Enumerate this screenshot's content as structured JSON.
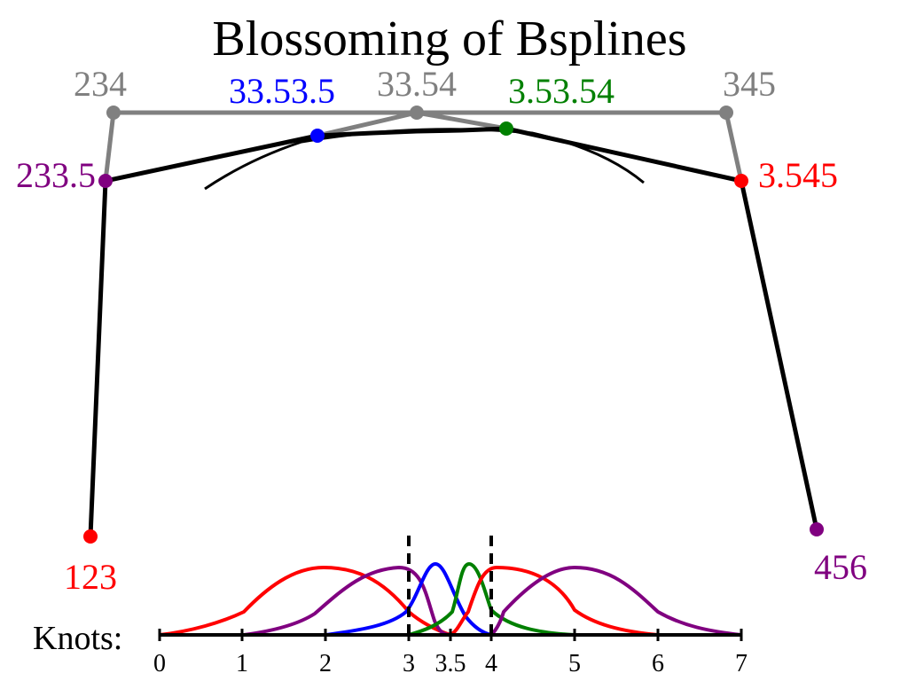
{
  "title": "Blossoming of Bsplines",
  "colors": {
    "gray": "#808080",
    "black": "#000000",
    "red": "#ff0000",
    "purple": "#800080",
    "blue": "#0000ff",
    "green": "#008000"
  },
  "points": {
    "p123": {
      "label": "123",
      "color": "#ff0000"
    },
    "p234": {
      "label": "234",
      "color": "#808080"
    },
    "p345": {
      "label": "345",
      "color": "#808080"
    },
    "p456": {
      "label": "456",
      "color": "#800080"
    },
    "p2335": {
      "label": "233.5",
      "color": "#800080"
    },
    "p3354": {
      "label": "33.54",
      "color": "#808080"
    },
    "p3545": {
      "label": "3.545",
      "color": "#ff0000"
    },
    "p33535": {
      "label": "33.53.5",
      "color": "#0000ff"
    },
    "p35354": {
      "label": "3.53.54",
      "color": "#008000"
    }
  },
  "knots": {
    "label": "Knots:",
    "ticks": [
      "0",
      "1",
      "2",
      "3",
      "3.5",
      "4",
      "5",
      "6",
      "7"
    ],
    "dashed_at": [
      "3",
      "4"
    ]
  },
  "basis_functions": [
    {
      "name": "red-wide",
      "color": "#ff0000"
    },
    {
      "name": "purple-left",
      "color": "#800080"
    },
    {
      "name": "blue",
      "color": "#0000ff"
    },
    {
      "name": "green",
      "color": "#008000"
    },
    {
      "name": "red-right",
      "color": "#ff0000"
    },
    {
      "name": "purple-right",
      "color": "#800080"
    }
  ]
}
